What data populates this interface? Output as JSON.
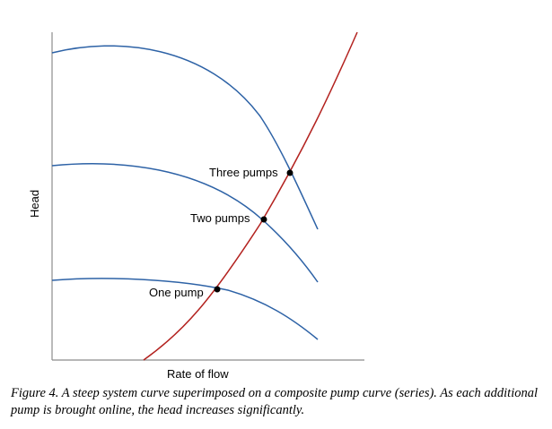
{
  "diagram": {
    "x_axis_label": "Rate of flow",
    "y_axis_label": "Head",
    "curves": [
      {
        "name": "pump-curve-one",
        "color": "#2d62a6"
      },
      {
        "name": "pump-curve-two",
        "color": "#2d62a6"
      },
      {
        "name": "pump-curve-three",
        "color": "#2d62a6"
      },
      {
        "name": "system-curve",
        "color": "#b3221f"
      }
    ],
    "operating_points": [
      {
        "label": "One pump"
      },
      {
        "label": "Two pumps"
      },
      {
        "label": "Three pumps"
      }
    ]
  },
  "caption": "Figure 4. A steep system curve superimposed on a composite pump curve (series).  As each additional pump is brought online, the head increases significantly."
}
